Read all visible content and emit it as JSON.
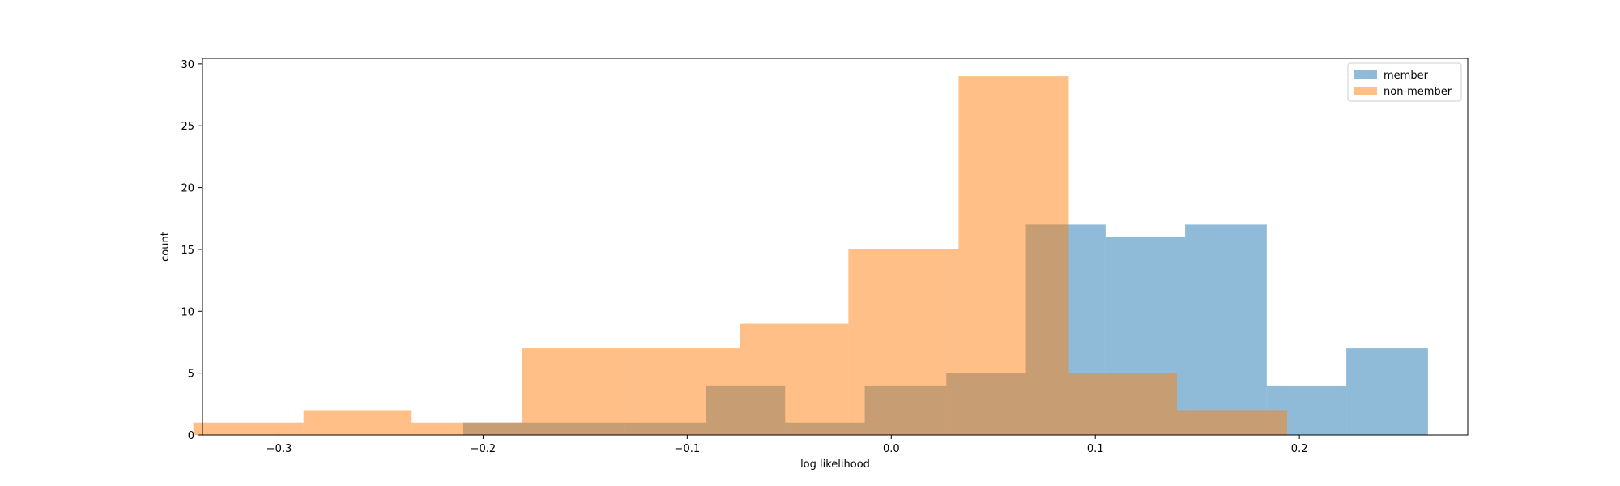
{
  "chart_data": {
    "type": "bar",
    "title": "",
    "xlabel": "log likelihood",
    "ylabel": "count",
    "xlim": [
      -0.3375,
      0.2825
    ],
    "ylim": [
      0,
      30.45
    ],
    "xticks": [
      -0.3,
      -0.2,
      -0.1,
      0.0,
      0.1,
      0.2
    ],
    "xtick_labels": [
      "−0.3",
      "−0.2",
      "−0.1",
      "0.0",
      "0.1",
      "0.2"
    ],
    "yticks": [
      0,
      5,
      10,
      15,
      20,
      25,
      30
    ],
    "ytick_labels": [
      "0",
      "5",
      "10",
      "15",
      "20",
      "25",
      "30"
    ],
    "grid": false,
    "legend_position": "top-right",
    "series": [
      {
        "name": "member",
        "color": "#1f77b4",
        "opacity": 0.5,
        "bins": [
          [
            -0.21,
            -0.17,
            1
          ],
          [
            -0.17,
            -0.131,
            1
          ],
          [
            -0.131,
            -0.091,
            1
          ],
          [
            -0.091,
            -0.052,
            4
          ],
          [
            -0.052,
            -0.013,
            1
          ],
          [
            -0.013,
            0.027,
            4
          ],
          [
            0.027,
            0.066,
            5
          ],
          [
            0.066,
            0.105,
            17
          ],
          [
            0.105,
            0.144,
            16
          ],
          [
            0.144,
            0.184,
            17
          ],
          [
            0.184,
            0.223,
            4
          ],
          [
            0.223,
            0.263,
            7
          ]
        ]
      },
      {
        "name": "non-member",
        "color": "#ff7f0e",
        "opacity": 0.5,
        "bins": [
          [
            -0.342,
            -0.288,
            1
          ],
          [
            -0.288,
            -0.235,
            2
          ],
          [
            -0.235,
            -0.181,
            1
          ],
          [
            -0.181,
            -0.128,
            7
          ],
          [
            -0.128,
            -0.074,
            7
          ],
          [
            -0.074,
            -0.021,
            9
          ],
          [
            -0.021,
            0.033,
            15
          ],
          [
            0.033,
            0.087,
            29
          ],
          [
            0.087,
            0.14,
            5
          ],
          [
            0.14,
            0.194,
            2
          ]
        ]
      }
    ]
  }
}
